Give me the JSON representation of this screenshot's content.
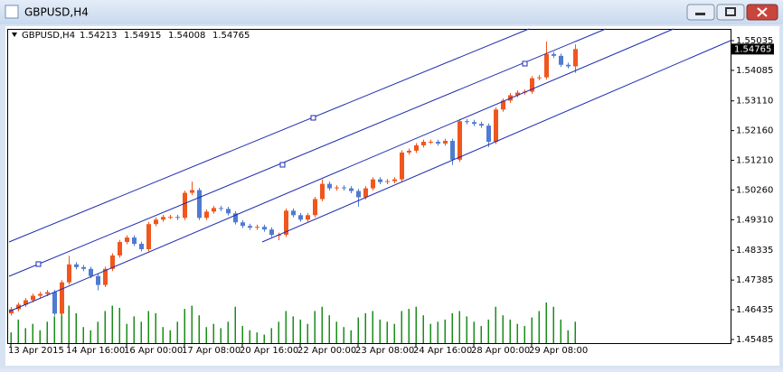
{
  "window_title": "GBPUSD,H4",
  "chart_data": {
    "type": "candlestick",
    "title": "GBPUSD,H4",
    "bull_color": "#f0561e",
    "bear_color": "#4f7bd1",
    "volume_color": "#1a8c1a",
    "ylim": [
      1.4537,
      1.5541
    ],
    "yticks": [
      1.55035,
      1.54085,
      {
        "value": 1.5311,
        "label": "1.53110"
      },
      {
        "value": 1.5216,
        "label": "1.52160"
      },
      {
        "value": 1.5121,
        "label": "1.51210"
      },
      {
        "value": 1.5026,
        "label": "1.50260"
      },
      {
        "value": 1.4931,
        "label": "1.49310"
      },
      1.48335,
      1.47385,
      1.46435,
      1.45485
    ],
    "categories": [
      "13 Apr 2015",
      null,
      null,
      null,
      null,
      null,
      null,
      null,
      "14 Apr 16:00",
      null,
      null,
      null,
      null,
      null,
      null,
      null,
      "16 Apr 00:00",
      null,
      null,
      null,
      null,
      null,
      null,
      null,
      "17 Apr 08:00",
      null,
      null,
      null,
      null,
      null,
      null,
      null,
      "20 Apr 16:00",
      null,
      null,
      null,
      null,
      null,
      null,
      null,
      "22 Apr 00:00",
      null,
      null,
      null,
      null,
      null,
      null,
      null,
      "23 Apr 08:00",
      null,
      null,
      null,
      null,
      null,
      null,
      null,
      "24 Apr 16:00",
      null,
      null,
      null,
      null,
      null,
      null,
      null,
      "28 Apr 00:00",
      null,
      null,
      null,
      null,
      null,
      null,
      null,
      "29 Apr 08:00",
      null,
      null,
      null,
      null,
      null,
      null
    ],
    "ohlc": [
      [
        1.4632,
        1.46525,
        1.4625,
        1.46455
      ],
      [
        1.46455,
        1.46668,
        1.46385,
        1.46598
      ],
      [
        1.46598,
        1.46811,
        1.46528,
        1.46741
      ],
      [
        1.46741,
        1.46954,
        1.46671,
        1.46884
      ],
      [
        1.46884,
        1.47011,
        1.46814,
        1.46941
      ],
      [
        1.46941,
        1.47068,
        1.46871,
        1.46998
      ],
      [
        1.46998,
        1.47068,
        1.46242,
        1.46312
      ],
      [
        1.46312,
        1.47383,
        1.46242,
        1.47313
      ],
      [
        1.47313,
        1.48155,
        1.47243,
        1.47885
      ],
      [
        1.47885,
        1.47955,
        1.47729,
        1.47799
      ],
      [
        1.47799,
        1.47869,
        1.47672,
        1.47742
      ],
      [
        1.47742,
        1.47812,
        1.47443,
        1.47513
      ],
      [
        1.47513,
        1.47583,
        1.47057,
        1.47227
      ],
      [
        1.47227,
        1.47812,
        1.47157,
        1.47742
      ],
      [
        1.47742,
        1.48241,
        1.47672,
        1.48171
      ],
      [
        1.48171,
        1.4867,
        1.48101,
        1.486
      ],
      [
        1.486,
        1.48813,
        1.4853,
        1.48743
      ],
      [
        1.48743,
        1.48813,
        1.48473,
        1.48543
      ],
      [
        1.48543,
        1.48613,
        1.48301,
        1.48371
      ],
      [
        1.48371,
        1.49242,
        1.48301,
        1.49172
      ],
      [
        1.49172,
        1.49385,
        1.49102,
        1.49315
      ],
      [
        1.49315,
        1.49471,
        1.49245,
        1.49401
      ],
      [
        1.49401,
        1.49471,
        1.49331,
        1.49401
      ],
      [
        1.49401,
        1.49471,
        1.49302,
        1.49372
      ],
      [
        1.49372,
        1.50243,
        1.49302,
        1.50173
      ],
      [
        1.50173,
        1.50529,
        1.50103,
        1.50259
      ],
      [
        1.50259,
        1.50329,
        1.49302,
        1.49372
      ],
      [
        1.49372,
        1.49642,
        1.49302,
        1.49572
      ],
      [
        1.49572,
        1.49757,
        1.49502,
        1.49687
      ],
      [
        1.49687,
        1.49757,
        1.49588,
        1.49658
      ],
      [
        1.49658,
        1.49728,
        1.49445,
        1.49515
      ],
      [
        1.49515,
        1.49585,
        1.49159,
        1.49229
      ],
      [
        1.49229,
        1.49299,
        1.49045,
        1.49115
      ],
      [
        1.49115,
        1.49185,
        1.48988,
        1.49058
      ],
      [
        1.49058,
        1.49156,
        1.48988,
        1.49086
      ],
      [
        1.49086,
        1.49156,
        1.4893,
        1.49
      ],
      [
        1.49,
        1.4907,
        1.48759,
        1.48829
      ],
      [
        1.48829,
        1.48899,
        1.48659,
        1.48829
      ],
      [
        1.48829,
        1.49671,
        1.48759,
        1.49601
      ],
      [
        1.49601,
        1.49671,
        1.49388,
        1.49458
      ],
      [
        1.49458,
        1.49528,
        1.49245,
        1.49315
      ],
      [
        1.49315,
        1.49528,
        1.49245,
        1.49458
      ],
      [
        1.49458,
        1.50043,
        1.49388,
        1.49973
      ],
      [
        1.49973,
        1.50599,
        1.49903,
        1.50459
      ],
      [
        1.50459,
        1.50529,
        1.50246,
        1.50316
      ],
      [
        1.50316,
        1.50415,
        1.50246,
        1.50345
      ],
      [
        1.50345,
        1.50415,
        1.50246,
        1.50316
      ],
      [
        1.50316,
        1.50386,
        1.5016,
        1.5023
      ],
      [
        1.5023,
        1.503,
        1.4973,
        1.5003
      ],
      [
        1.5003,
        1.50386,
        1.4996,
        1.50316
      ],
      [
        1.50316,
        1.50672,
        1.50246,
        1.50602
      ],
      [
        1.50602,
        1.50672,
        1.50446,
        1.50516
      ],
      [
        1.50516,
        1.50615,
        1.50446,
        1.50545
      ],
      [
        1.50545,
        1.50672,
        1.50475,
        1.50602
      ],
      [
        1.50602,
        1.5153,
        1.50532,
        1.5146
      ],
      [
        1.5146,
        1.51587,
        1.5139,
        1.51517
      ],
      [
        1.51517,
        1.51759,
        1.51447,
        1.51689
      ],
      [
        1.51689,
        1.51873,
        1.51619,
        1.51803
      ],
      [
        1.51803,
        1.51873,
        1.51733,
        1.51803
      ],
      [
        1.51803,
        1.51873,
        1.51676,
        1.51746
      ],
      [
        1.51746,
        1.51902,
        1.51676,
        1.51832
      ],
      [
        1.51832,
        1.51902,
        1.51061,
        1.51231
      ],
      [
        1.51231,
        1.52531,
        1.51161,
        1.52461
      ],
      [
        1.52461,
        1.52531,
        1.52362,
        1.52432
      ],
      [
        1.52432,
        1.52502,
        1.52305,
        1.52375
      ],
      [
        1.52375,
        1.52445,
        1.52248,
        1.52318
      ],
      [
        1.52318,
        1.52388,
        1.51633,
        1.51803
      ],
      [
        1.51803,
        1.52903,
        1.51733,
        1.52833
      ],
      [
        1.52833,
        1.53189,
        1.52763,
        1.53119
      ],
      [
        1.53119,
        1.5336,
        1.53049,
        1.5329
      ],
      [
        1.5329,
        1.53446,
        1.5322,
        1.53376
      ],
      [
        1.53376,
        1.53475,
        1.53306,
        1.53405
      ],
      [
        1.53405,
        1.53904,
        1.53335,
        1.53834
      ],
      [
        1.53834,
        1.53932,
        1.53764,
        1.53862
      ],
      [
        1.53862,
        1.55006,
        1.53792,
        1.54606
      ],
      [
        1.54606,
        1.54676,
        1.54479,
        1.54549
      ],
      [
        1.54549,
        1.54619,
        1.54193,
        1.54263
      ],
      [
        1.54263,
        1.54333,
        1.54143,
        1.54213
      ],
      [
        1.54213,
        1.54915,
        1.54008,
        1.54765
      ]
    ],
    "volumes": [
      1000,
      2200,
      1400,
      1800,
      1200,
      2000,
      2500,
      3000,
      3500,
      2800,
      1500,
      1200,
      2000,
      3000,
      3500,
      3300,
      1800,
      2500,
      2000,
      3000,
      2800,
      1500,
      1200,
      2000,
      3200,
      3500,
      2600,
      1500,
      1800,
      1400,
      2000,
      3400,
      1600,
      1200,
      1000,
      800,
      1400,
      2000,
      3000,
      2500,
      2200,
      1800,
      3000,
      3400,
      2600,
      2000,
      1500,
      1200,
      2400,
      2800,
      3000,
      2200,
      2000,
      1800,
      3000,
      3200,
      3400,
      2600,
      1800,
      2000,
      2200,
      2800,
      3000,
      2500,
      2000,
      1600,
      2200,
      3400,
      2600,
      2200,
      1800,
      1600,
      2400,
      3000,
      3800,
      3400,
      2200,
      1200,
      2000
    ]
  }
}
